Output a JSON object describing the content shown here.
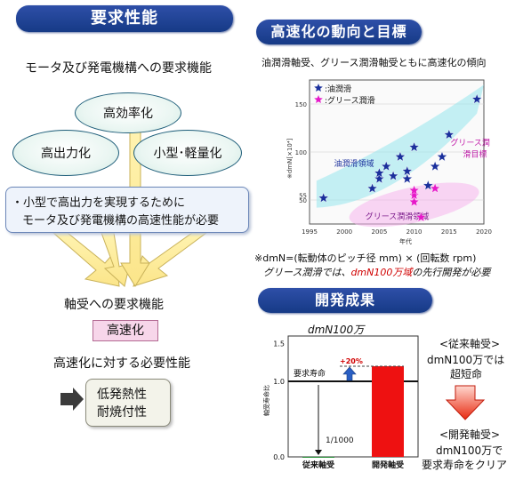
{
  "left": {
    "title": "要求性能",
    "subtitle": "モータ及び発電機構への要求機能",
    "bubble_top": "高効率化",
    "bubble_left": "高出力化",
    "bubble_right": "小型･軽量化",
    "note_line1": "・小型で高出力を実現するために",
    "note_line2": "モータ及び発電機構の高速性能が必要",
    "bearing_label": "軸受への要求機能",
    "speed_box": "高速化",
    "need_label": "高速化に対する必要性能",
    "perf_line1": "低発熱性",
    "perf_line2": "耐焼付性"
  },
  "right_top": {
    "title": "高速化の動向と目標",
    "subtitle": "油潤滑軸受、グリース潤滑軸受ともに高速化の傾向",
    "footnote1": "※dmN=(転動体のピッチ径 mm) × (回転数 rpm)",
    "footnote2_prefix": "グリース潤滑では、",
    "footnote2_red": "dmN100万域",
    "footnote2_suffix": "の先行開発が必要"
  },
  "chart_data": [
    {
      "type": "scatter",
      "title": "",
      "xlabel": "年代",
      "ylabel": "※dmN[×10⁴]",
      "xlim": [
        1995,
        2020
      ],
      "ylim": [
        25,
        175
      ],
      "x_ticks": [
        "1995",
        "2000",
        "2005",
        "2010",
        "2015",
        "2020"
      ],
      "y_ticks": [
        "50",
        "55",
        "100",
        "150"
      ],
      "legend_placement": "top-left",
      "region_labels": [
        "油潤滑領域",
        "グリース潤滑領域",
        "グリース潤滑目標"
      ],
      "series": [
        {
          "name": ":油潤滑",
          "color": "#1a2f9c",
          "points": [
            [
              1997,
              52
            ],
            [
              2004,
              62
            ],
            [
              2005,
              72
            ],
            [
              2005,
              78
            ],
            [
              2006,
              85
            ],
            [
              2007,
              75
            ],
            [
              2008,
              95
            ],
            [
              2009,
              72
            ],
            [
              2009,
              80
            ],
            [
              2010,
              105
            ],
            [
              2012,
              65
            ],
            [
              2013,
              85
            ],
            [
              2014,
              95
            ],
            [
              2015,
              118
            ],
            [
              2019,
              155
            ]
          ]
        },
        {
          "name": ":グリース潤滑",
          "color": "#e619c9",
          "points": [
            [
              2010,
              48
            ],
            [
              2010,
              55
            ],
            [
              2010,
              60
            ],
            [
              2011,
              32
            ],
            [
              2013,
              62
            ]
          ]
        }
      ]
    },
    {
      "type": "bar",
      "title": "dmN100万",
      "categories": [
        "従来軸受",
        "開発軸受"
      ],
      "values": [
        0.001,
        1.2
      ],
      "ylabel": "軸受寿命比",
      "y_ticks": [
        "0.0",
        "1.0",
        "1.5"
      ],
      "ylim": [
        0,
        1.6
      ],
      "reference_line": {
        "label": "要求寿命",
        "value": 1.0
      },
      "annotations": [
        "+20%",
        "1/1000"
      ],
      "colors": [
        "#1a8a2a",
        "#ee1111"
      ]
    }
  ],
  "right_bottom": {
    "title": "開発成果",
    "chart_title": "dmN100万",
    "old_header": "<従来軸受>",
    "old_line1": "dmN100万では",
    "old_line2": "超短命",
    "new_header": "<開発軸受>",
    "new_line1": "dmN100万で",
    "new_line2": "要求寿命をクリア"
  }
}
